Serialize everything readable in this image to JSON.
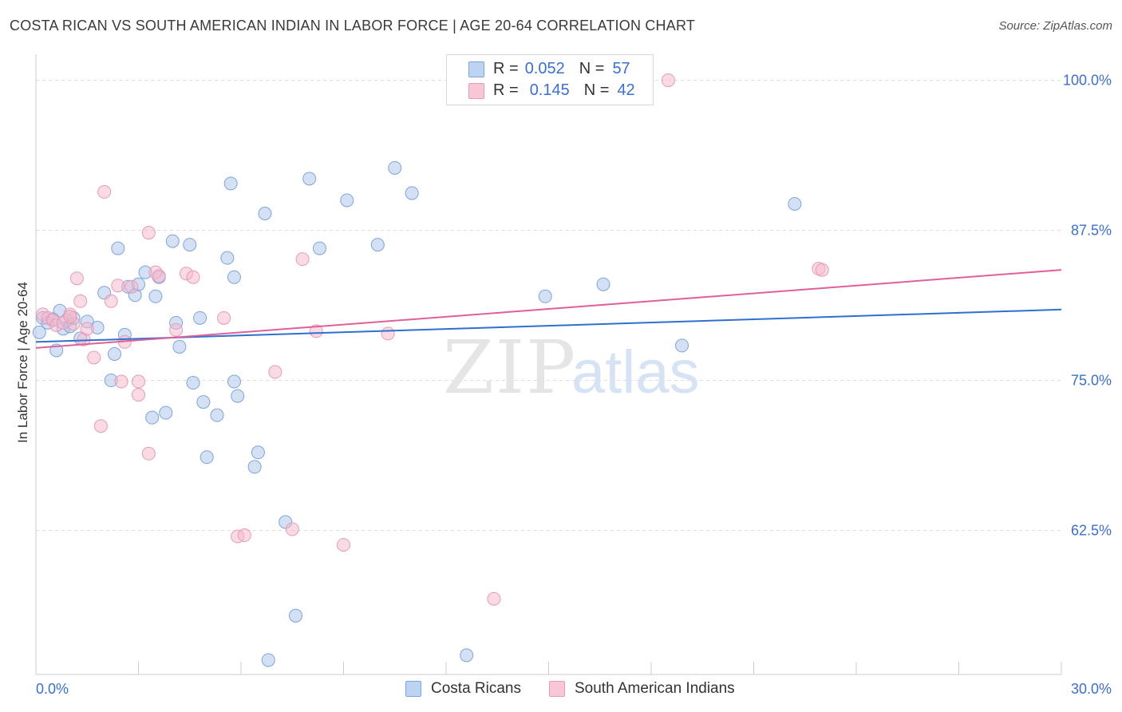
{
  "title": "COSTA RICAN VS SOUTH AMERICAN INDIAN IN LABOR FORCE | AGE 20-64 CORRELATION CHART",
  "source": "Source: ZipAtlas.com",
  "watermark": {
    "zip": "ZIP",
    "atlas": "atlas"
  },
  "legend": {
    "rows": [
      {
        "r_label": "R =",
        "r_value": "0.052",
        "n_label": "N =",
        "n_value": "57"
      },
      {
        "r_label": "R =",
        "r_value": "0.145",
        "n_label": "N =",
        "n_value": "42"
      }
    ]
  },
  "chart_data": {
    "type": "scatter",
    "title": "COSTA RICAN VS SOUTH AMERICAN INDIAN IN LABOR FORCE | AGE 20-64 CORRELATION CHART",
    "xlabel": "",
    "ylabel": "In Labor Force | Age 20-64",
    "xlim": [
      0,
      30
    ],
    "ylim": [
      50.5,
      101.5
    ],
    "x_tick_labels": [
      "0.0%",
      "30.0%"
    ],
    "y_ticks": [
      62.5,
      75.0,
      87.5,
      100.0
    ],
    "y_tick_labels": [
      "62.5%",
      "75.0%",
      "87.5%",
      "100.0%"
    ],
    "grid": true,
    "legend_position": "top-center",
    "series": [
      {
        "name": "Costa Ricans",
        "color": "#a9c4ec",
        "line_color": "#2f6fd0",
        "trend": {
          "x": [
            0,
            30
          ],
          "y": [
            78.2,
            80.9
          ]
        },
        "points": [
          [
            0.1,
            79.0
          ],
          [
            0.2,
            80.2
          ],
          [
            0.35,
            79.8
          ],
          [
            0.5,
            80.1
          ],
          [
            0.6,
            77.5
          ],
          [
            0.7,
            80.8
          ],
          [
            0.8,
            79.3
          ],
          [
            0.9,
            80.0
          ],
          [
            1.0,
            79.5
          ],
          [
            1.1,
            80.2
          ],
          [
            1.3,
            78.5
          ],
          [
            1.5,
            79.9
          ],
          [
            1.8,
            79.4
          ],
          [
            2.0,
            82.3
          ],
          [
            2.2,
            75.0
          ],
          [
            2.3,
            77.2
          ],
          [
            2.4,
            86.0
          ],
          [
            2.6,
            78.8
          ],
          [
            2.7,
            82.8
          ],
          [
            2.9,
            82.1
          ],
          [
            3.0,
            83.0
          ],
          [
            3.2,
            84.0
          ],
          [
            3.4,
            71.9
          ],
          [
            3.5,
            82.0
          ],
          [
            3.6,
            83.6
          ],
          [
            3.8,
            72.3
          ],
          [
            4.0,
            86.6
          ],
          [
            4.1,
            79.8
          ],
          [
            4.2,
            77.8
          ],
          [
            4.5,
            86.3
          ],
          [
            4.6,
            74.8
          ],
          [
            4.8,
            80.2
          ],
          [
            4.9,
            73.2
          ],
          [
            5.0,
            68.6
          ],
          [
            5.3,
            72.1
          ],
          [
            5.6,
            85.2
          ],
          [
            5.8,
            74.9
          ],
          [
            5.9,
            73.7
          ],
          [
            5.7,
            91.4
          ],
          [
            5.8,
            83.6
          ],
          [
            6.4,
            67.8
          ],
          [
            6.5,
            69.0
          ],
          [
            6.7,
            88.9
          ],
          [
            7.3,
            63.2
          ],
          [
            7.6,
            55.4
          ],
          [
            8.0,
            91.8
          ],
          [
            8.3,
            86.0
          ],
          [
            9.1,
            90.0
          ],
          [
            10.0,
            86.3
          ],
          [
            10.5,
            92.7
          ],
          [
            11.0,
            90.6
          ],
          [
            12.6,
            52.1
          ],
          [
            14.9,
            82.0
          ],
          [
            16.6,
            83.0
          ],
          [
            18.9,
            77.9
          ],
          [
            22.2,
            89.7
          ],
          [
            6.8,
            51.7
          ]
        ]
      },
      {
        "name": "South American Indians",
        "color": "#f5b8ca",
        "line_color": "#e0609a",
        "trend": {
          "x": [
            0,
            30
          ],
          "y": [
            77.7,
            84.2
          ]
        },
        "points": [
          [
            0.2,
            80.5
          ],
          [
            0.35,
            80.2
          ],
          [
            0.5,
            80.0
          ],
          [
            0.6,
            79.6
          ],
          [
            0.8,
            79.8
          ],
          [
            1.0,
            80.5
          ],
          [
            1.1,
            79.7
          ],
          [
            1.2,
            83.5
          ],
          [
            1.3,
            81.6
          ],
          [
            1.4,
            78.4
          ],
          [
            1.5,
            79.3
          ],
          [
            1.7,
            76.9
          ],
          [
            1.9,
            71.2
          ],
          [
            2.0,
            90.7
          ],
          [
            2.2,
            81.6
          ],
          [
            2.4,
            82.9
          ],
          [
            2.5,
            74.9
          ],
          [
            2.6,
            78.2
          ],
          [
            2.8,
            82.8
          ],
          [
            3.0,
            73.8
          ],
          [
            3.0,
            74.9
          ],
          [
            3.3,
            68.9
          ],
          [
            3.3,
            87.3
          ],
          [
            3.5,
            84.0
          ],
          [
            3.6,
            83.7
          ],
          [
            4.1,
            79.2
          ],
          [
            4.4,
            83.9
          ],
          [
            4.6,
            83.6
          ],
          [
            5.5,
            80.2
          ],
          [
            5.9,
            62.0
          ],
          [
            6.1,
            62.1
          ],
          [
            7.0,
            75.7
          ],
          [
            7.5,
            62.6
          ],
          [
            7.8,
            85.1
          ],
          [
            8.2,
            79.1
          ],
          [
            9.0,
            61.3
          ],
          [
            10.3,
            78.9
          ],
          [
            13.4,
            56.8
          ],
          [
            18.5,
            100.0
          ],
          [
            22.9,
            84.3
          ],
          [
            23.0,
            84.2
          ],
          [
            1.0,
            80.3
          ]
        ]
      }
    ]
  }
}
